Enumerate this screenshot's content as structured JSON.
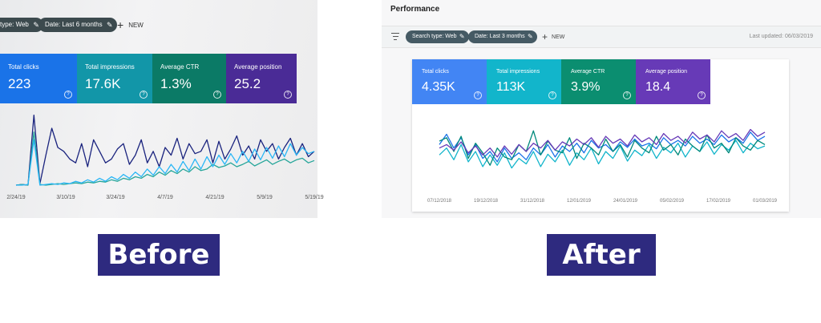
{
  "before": {
    "filters": [
      {
        "label": "type: Web",
        "icon": "pencil-icon"
      },
      {
        "label": "Date: Last 6 months",
        "icon": "pencil-icon"
      }
    ],
    "new_label": "NEW",
    "metrics": [
      {
        "label": "Total clicks",
        "value": "223",
        "color": "#1a73e8"
      },
      {
        "label": "Total impressions",
        "value": "17.6K",
        "color": "#1296a8"
      },
      {
        "label": "Average CTR",
        "value": "1.3%",
        "color": "#0b7a66"
      },
      {
        "label": "Average position",
        "value": "25.2",
        "color": "#4a2b96"
      }
    ],
    "chart_data": {
      "type": "line",
      "x_ticks": [
        "2/24/19",
        "3/10/19",
        "3/24/19",
        "4/7/19",
        "4/21/19",
        "5/9/19",
        "5/19/19"
      ],
      "series": [
        {
          "color": "#1a237e",
          "values": [
            1,
            2,
            1,
            92,
            3,
            40,
            75,
            50,
            45,
            35,
            30,
            55,
            25,
            60,
            45,
            30,
            35,
            48,
            55,
            28,
            40,
            60,
            30,
            45,
            25,
            50,
            40,
            62,
            35,
            55,
            42,
            45,
            60,
            30,
            58,
            35,
            48,
            65,
            40,
            52,
            35,
            60,
            45,
            55,
            35,
            50,
            62,
            40,
            55,
            38,
            45
          ]
        },
        {
          "color": "#26a69a",
          "values": [
            1,
            2,
            1,
            70,
            2,
            1,
            2,
            3,
            2,
            3,
            4,
            3,
            5,
            4,
            6,
            5,
            8,
            6,
            10,
            8,
            12,
            10,
            15,
            12,
            18,
            14,
            20,
            16,
            22,
            18,
            25,
            20,
            22,
            28,
            24,
            26,
            30,
            25,
            28,
            32,
            26,
            30,
            34,
            28,
            32,
            35,
            30,
            34,
            36,
            30,
            33
          ]
        },
        {
          "color": "#29b6f6",
          "values": [
            1,
            1,
            2,
            60,
            1,
            2,
            3,
            2,
            4,
            3,
            6,
            4,
            8,
            5,
            10,
            6,
            12,
            8,
            15,
            10,
            18,
            12,
            22,
            14,
            25,
            16,
            28,
            18,
            32,
            20,
            35,
            22,
            38,
            25,
            40,
            28,
            42,
            30,
            45,
            32,
            48,
            34,
            50,
            36,
            52,
            38,
            55,
            40,
            50,
            42,
            45
          ]
        }
      ],
      "ylim": [
        0,
        100
      ]
    }
  },
  "after": {
    "title": "Performance",
    "filters": [
      {
        "label": "Search type: Web",
        "icon": "pencil-icon"
      },
      {
        "label": "Date: Last 3 months",
        "icon": "pencil-icon"
      }
    ],
    "new_label": "NEW",
    "last_updated": "Last updated: 06/03/2019",
    "metrics": [
      {
        "label": "Total clicks",
        "value": "4.35K",
        "color": "#4285f4"
      },
      {
        "label": "Total impressions",
        "value": "113K",
        "color": "#12b5cb"
      },
      {
        "label": "Average CTR",
        "value": "3.9%",
        "color": "#0b8e70"
      },
      {
        "label": "Average position",
        "value": "18.4",
        "color": "#673ab7"
      }
    ],
    "chart_data": {
      "type": "line",
      "x_ticks": [
        "07/12/2018",
        "19/12/2018",
        "31/12/2018",
        "12/01/2019",
        "24/01/2019",
        "05/02/2019",
        "17/02/2019",
        "01/03/2019"
      ],
      "series": [
        {
          "color": "#1a73e8",
          "values": [
            60,
            75,
            55,
            70,
            45,
            60,
            40,
            50,
            35,
            55,
            40,
            48,
            38,
            55,
            45,
            60,
            42,
            58,
            50,
            62,
            48,
            66,
            55,
            60,
            50,
            64,
            56,
            68,
            58,
            62,
            54,
            70,
            60,
            66,
            58,
            72,
            62,
            68,
            60,
            74,
            64,
            70,
            62,
            78,
            66,
            72
          ]
        },
        {
          "color": "#12b5cb",
          "values": [
            45,
            55,
            38,
            60,
            35,
            50,
            28,
            45,
            30,
            48,
            26,
            40,
            32,
            50,
            28,
            46,
            35,
            52,
            30,
            48,
            38,
            55,
            32,
            50,
            40,
            58,
            36,
            52,
            44,
            60,
            40,
            56,
            48,
            62,
            42,
            58,
            50,
            64,
            46,
            60,
            52,
            66,
            48,
            62,
            54,
            58
          ]
        },
        {
          "color": "#00897b",
          "values": [
            65,
            70,
            50,
            72,
            40,
            62,
            48,
            30,
            55,
            42,
            38,
            60,
            50,
            80,
            45,
            65,
            52,
            48,
            70,
            40,
            62,
            55,
            45,
            68,
            50,
            60,
            42,
            66,
            55,
            48,
            72,
            52,
            60,
            45,
            68,
            58,
            50,
            74,
            55,
            62,
            48,
            70,
            58,
            52,
            66,
            60
          ]
        },
        {
          "color": "#673ab7",
          "values": [
            55,
            60,
            52,
            64,
            48,
            58,
            45,
            55,
            42,
            58,
            46,
            60,
            50,
            62,
            55,
            66,
            52,
            64,
            58,
            68,
            60,
            70,
            56,
            72,
            62,
            68,
            58,
            74,
            64,
            70,
            60,
            76,
            66,
            72,
            62,
            78,
            68,
            74,
            64,
            80,
            70,
            76,
            66,
            82,
            72,
            78
          ]
        }
      ],
      "ylim": [
        0,
        100
      ]
    }
  },
  "captions": {
    "before": "Before",
    "after": "After"
  }
}
